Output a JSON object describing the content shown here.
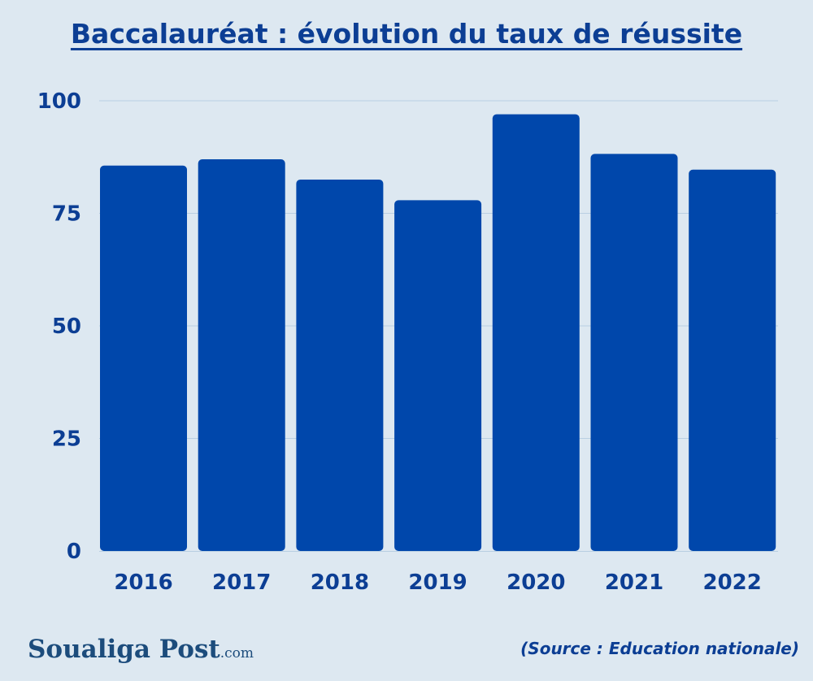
{
  "title": "Baccalauréat : évolution du taux de réussite",
  "chart_data": {
    "type": "bar",
    "categories": [
      "2016",
      "2017",
      "2018",
      "2019",
      "2020",
      "2021",
      "2022"
    ],
    "values": [
      85.6,
      87.0,
      82.5,
      77.9,
      97.0,
      88.2,
      84.7
    ],
    "ylim": [
      0,
      100
    ],
    "yticks": [
      0,
      25,
      50,
      75,
      100
    ],
    "xlabel": "",
    "ylabel": "",
    "grid": true,
    "bar_color": "#0047ab"
  },
  "source": "(Source : Education nationale)",
  "logo": {
    "name": "Soualiga Post",
    "suffix": ".com"
  },
  "colors": {
    "background": "#dde8f1",
    "text": "#0c3e94",
    "bar": "#0047ab",
    "grid": "#b9cfe2"
  }
}
